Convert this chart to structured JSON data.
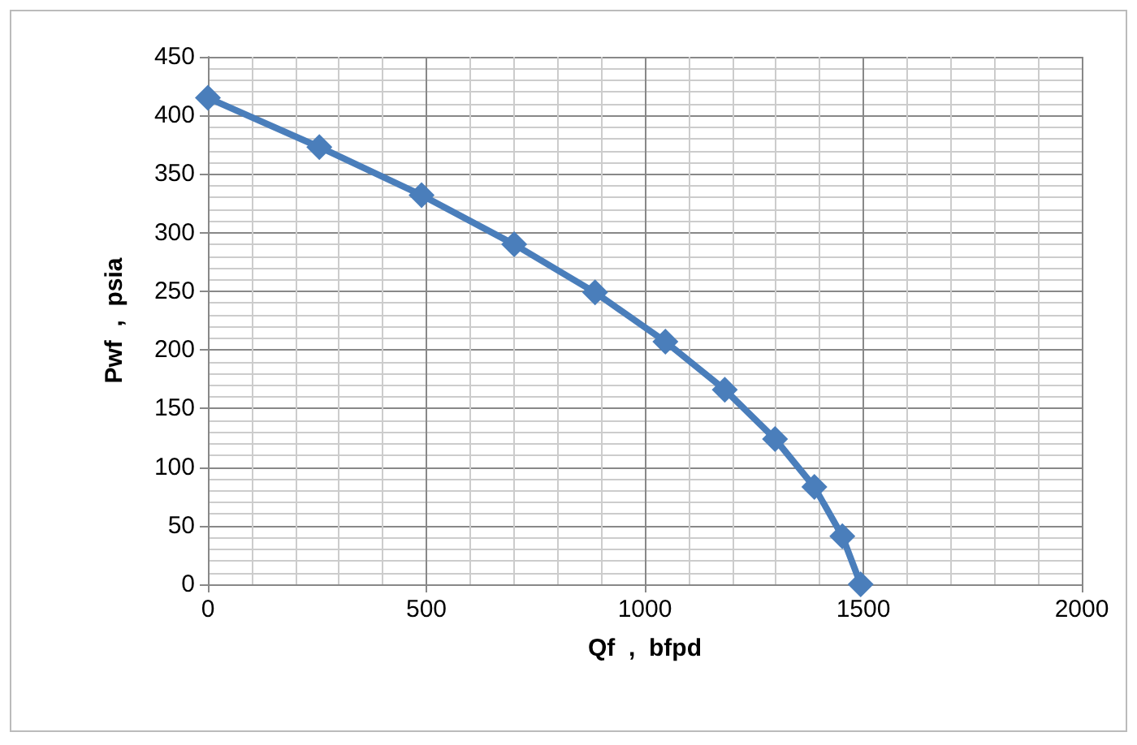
{
  "chart_data": {
    "type": "line",
    "xlabel": "Qf  ,  bfpd",
    "ylabel": "Pwf  ,  psia",
    "x": [
      0,
      255,
      489,
      701,
      886,
      1047,
      1183,
      1298,
      1388,
      1452,
      1494
    ],
    "series": [
      {
        "color": "#4a7ebb",
        "values": [
          415,
          373,
          332,
          290,
          249,
          207,
          166,
          124,
          83,
          41,
          0
        ]
      }
    ],
    "xlim": [
      0,
      2000
    ],
    "xticks": [
      0,
      500,
      1000,
      1500,
      2000
    ],
    "ylim": [
      0,
      450
    ],
    "yticks": [
      0,
      50,
      100,
      150,
      200,
      250,
      300,
      350,
      400,
      450
    ],
    "grid": true,
    "marker": "diamond",
    "line_style": "solid"
  }
}
